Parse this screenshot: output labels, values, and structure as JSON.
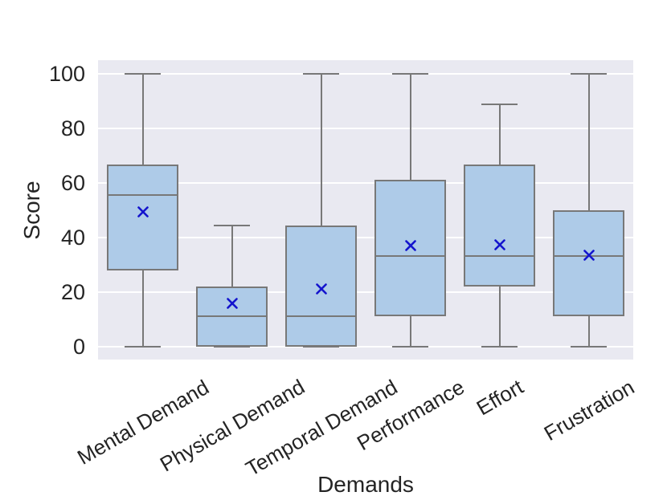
{
  "chart_data": {
    "type": "box",
    "title": "",
    "xlabel": "Demands",
    "ylabel": "Score",
    "ylim": [
      0,
      100
    ],
    "yticks": [
      0,
      20,
      40,
      60,
      80,
      100
    ],
    "grid": true,
    "legend": null,
    "categories": [
      "Mental Demand",
      "Physical Demand",
      "Temporal Demand",
      "Performance",
      "Effort",
      "Frustration"
    ],
    "boxes": [
      {
        "category": "Mental Demand",
        "whisker_low": 0,
        "q1": 27.8,
        "median": 55.6,
        "q3": 66.7,
        "whisker_high": 100,
        "mean": 49.3
      },
      {
        "category": "Physical Demand",
        "whisker_low": 0,
        "q1": 0,
        "median": 11.1,
        "q3": 22.2,
        "whisker_high": 44.4,
        "mean": 15.9
      },
      {
        "category": "Temporal Demand",
        "whisker_low": 0,
        "q1": 0,
        "median": 11.1,
        "q3": 44.4,
        "whisker_high": 100,
        "mean": 21.2
      },
      {
        "category": "Performance",
        "whisker_low": 0,
        "q1": 11.1,
        "median": 33.3,
        "q3": 61.1,
        "whisker_high": 100,
        "mean": 37.0
      },
      {
        "category": "Effort",
        "whisker_low": 0,
        "q1": 22.2,
        "median": 33.3,
        "q3": 66.7,
        "whisker_high": 88.9,
        "mean": 37.4
      },
      {
        "category": "Frustration",
        "whisker_low": 0,
        "q1": 11.1,
        "median": 33.3,
        "q3": 50.0,
        "whisker_high": 100,
        "mean": 33.5
      }
    ],
    "style": {
      "plot_bg": "#e9e9f1",
      "grid_color": "#ffffff",
      "box_fill": "#aecbe8",
      "box_edge": "#787878",
      "whisker_color": "#787878",
      "median_color": "#787878",
      "mean_marker": "x",
      "mean_marker_color": "#1414cd",
      "text_color": "#242424",
      "figure_bg": "#ffffff"
    }
  }
}
